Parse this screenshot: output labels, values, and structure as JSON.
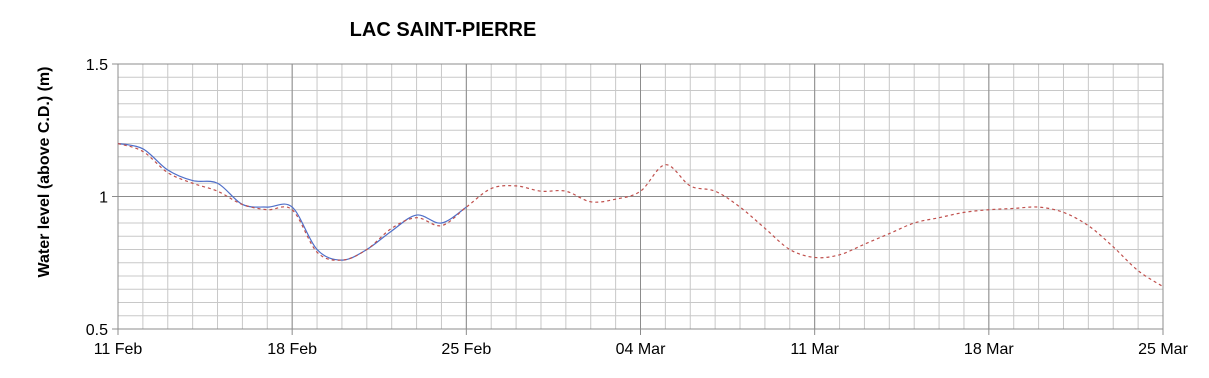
{
  "chart_data": {
    "type": "line",
    "title": "LAC SAINT-PIERRE",
    "ylabel": "Water level (above C.D.) (m)",
    "x": [
      0,
      1,
      2,
      3,
      4,
      5,
      6,
      7,
      8,
      9,
      10,
      11,
      12,
      13,
      14,
      15,
      16,
      17,
      18,
      19,
      20,
      21,
      22,
      23,
      24,
      25,
      26,
      27,
      28,
      29,
      30,
      31,
      32,
      33,
      34,
      35,
      36,
      37,
      38,
      39,
      40,
      41,
      42
    ],
    "series": [
      {
        "color": "#4f6fc9",
        "dashed": false,
        "values": [
          1.2,
          1.18,
          1.1,
          1.06,
          1.05,
          0.97,
          0.96,
          0.96,
          0.8,
          0.76,
          0.8,
          0.87,
          0.93,
          0.9,
          0.96,
          null,
          null,
          null,
          null,
          null,
          null,
          null,
          null,
          null,
          null,
          null,
          null,
          null,
          null,
          null,
          null,
          null,
          null,
          null,
          null,
          null,
          null,
          null,
          null,
          null,
          null,
          null,
          null
        ]
      },
      {
        "color": "#c0504d",
        "dashed": true,
        "values": [
          1.2,
          1.17,
          1.09,
          1.05,
          1.02,
          0.97,
          0.95,
          0.95,
          0.79,
          0.76,
          0.8,
          0.88,
          0.92,
          0.89,
          0.96,
          1.03,
          1.04,
          1.02,
          1.02,
          0.98,
          0.99,
          1.02,
          1.12,
          1.04,
          1.02,
          0.96,
          0.88,
          0.8,
          0.77,
          0.78,
          0.82,
          0.86,
          0.9,
          0.92,
          0.94,
          0.95,
          0.955,
          0.96,
          0.94,
          0.89,
          0.81,
          0.72,
          0.66
        ]
      }
    ],
    "xlim": [
      0,
      42
    ],
    "xticks": [
      {
        "value": 0,
        "label": "11 Feb"
      },
      {
        "value": 7,
        "label": "18 Feb"
      },
      {
        "value": 14,
        "label": "25 Feb"
      },
      {
        "value": 21,
        "label": "04 Mar"
      },
      {
        "value": 28,
        "label": "11 Mar"
      },
      {
        "value": 35,
        "label": "18 Mar"
      },
      {
        "value": 42,
        "label": "25 Mar"
      }
    ],
    "ylim": [
      0.5,
      1.5
    ],
    "yticks": [
      0.5,
      1,
      1.5
    ],
    "grid": true
  }
}
